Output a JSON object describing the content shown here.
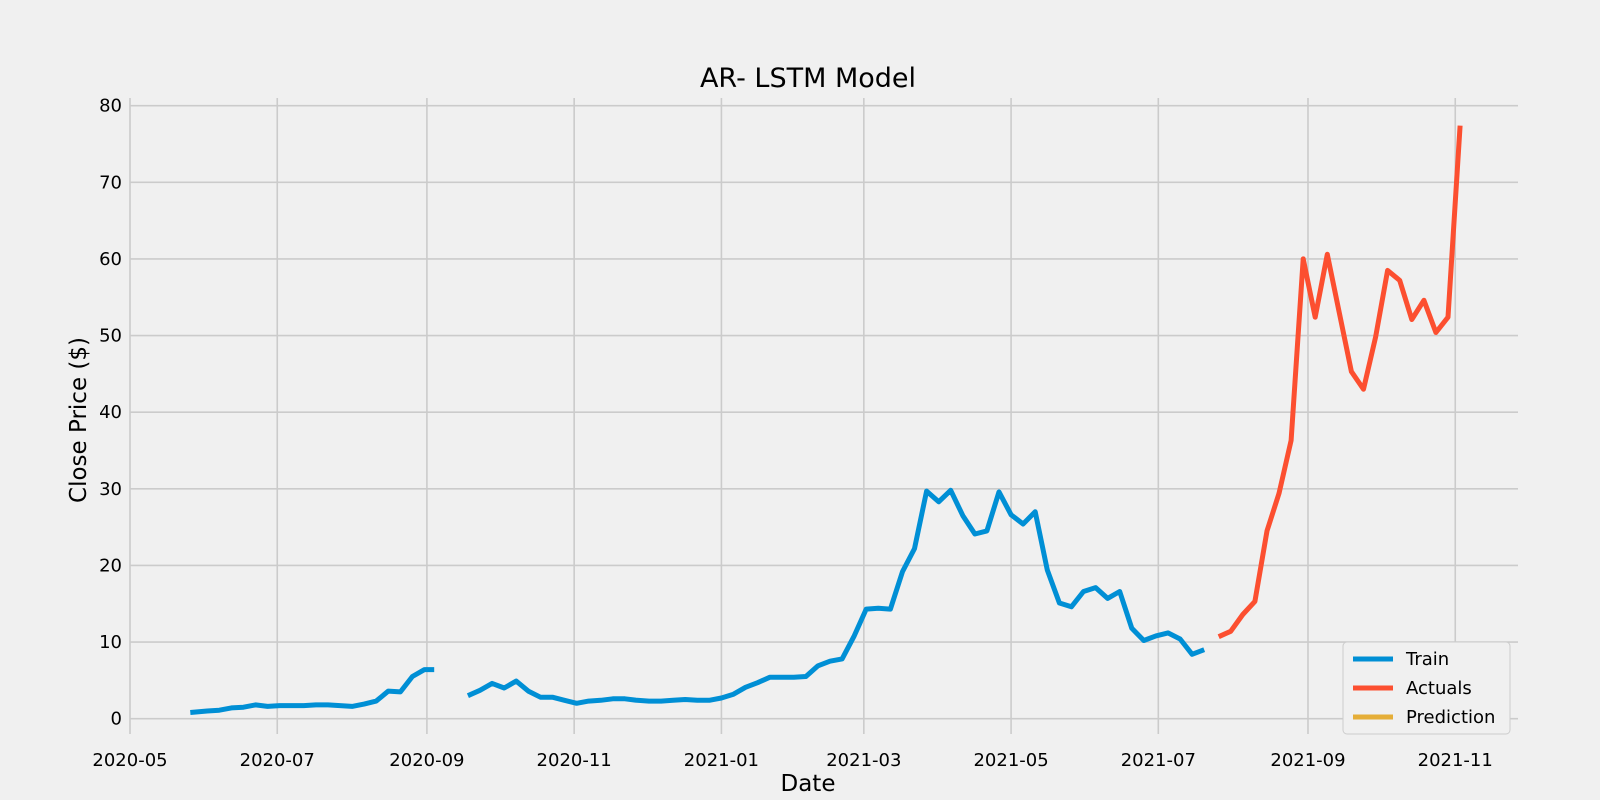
{
  "chart_data": {
    "type": "line",
    "title": "AR- LSTM Model",
    "xlabel": "Date",
    "ylabel": "Close Price ($)",
    "x_ticks": [
      "2020-05",
      "2020-07",
      "2020-09",
      "2020-11",
      "2021-01",
      "2021-03",
      "2021-05",
      "2021-07",
      "2021-09",
      "2021-11"
    ],
    "y_ticks": [
      0,
      10,
      20,
      30,
      40,
      50,
      60,
      70,
      80
    ],
    "xlim": [
      "2020-05-01",
      "2021-11-27"
    ],
    "ylim": [
      -2,
      81
    ],
    "grid": true,
    "legend_position": "bottom-right",
    "series": [
      {
        "name": "Train",
        "color": "#008fd5",
        "points": [
          [
            "2020-05-26",
            0.8
          ],
          [
            "2020-06-02",
            1.0
          ],
          [
            "2020-06-07",
            1.1
          ],
          [
            "2020-06-12",
            1.4
          ],
          [
            "2020-06-17",
            1.5
          ],
          [
            "2020-06-22",
            1.8
          ],
          [
            "2020-06-27",
            1.6
          ],
          [
            "2020-07-02",
            1.7
          ],
          [
            "2020-07-07",
            1.7
          ],
          [
            "2020-07-12",
            1.7
          ],
          [
            "2020-07-17",
            1.8
          ],
          [
            "2020-07-22",
            1.8
          ],
          [
            "2020-07-27",
            1.7
          ],
          [
            "2020-08-01",
            1.6
          ],
          [
            "2020-08-06",
            1.9
          ],
          [
            "2020-08-11",
            2.3
          ],
          [
            "2020-08-16",
            3.6
          ],
          [
            "2020-08-21",
            3.5
          ],
          [
            "2020-08-26",
            5.5
          ],
          [
            "2020-08-31",
            6.4
          ],
          [
            "2020-09-04",
            6.4
          ],
          null,
          [
            "2020-09-18",
            3.0
          ],
          [
            "2020-09-23",
            3.7
          ],
          [
            "2020-09-28",
            4.6
          ],
          [
            "2020-10-03",
            4.0
          ],
          [
            "2020-10-08",
            4.9
          ],
          [
            "2020-10-13",
            3.6
          ],
          [
            "2020-10-18",
            2.8
          ],
          [
            "2020-10-23",
            2.8
          ],
          [
            "2020-10-28",
            2.4
          ],
          [
            "2020-11-02",
            2.0
          ],
          [
            "2020-11-07",
            2.3
          ],
          [
            "2020-11-12",
            2.4
          ],
          [
            "2020-11-17",
            2.6
          ],
          [
            "2020-11-22",
            2.6
          ],
          [
            "2020-11-27",
            2.4
          ],
          [
            "2020-12-02",
            2.3
          ],
          [
            "2020-12-07",
            2.3
          ],
          [
            "2020-12-12",
            2.4
          ],
          [
            "2020-12-17",
            2.5
          ],
          [
            "2020-12-22",
            2.4
          ],
          [
            "2020-12-27",
            2.4
          ],
          [
            "2021-01-01",
            2.7
          ],
          [
            "2021-01-06",
            3.2
          ],
          [
            "2021-01-11",
            4.1
          ],
          [
            "2021-01-16",
            4.7
          ],
          [
            "2021-01-21",
            5.4
          ],
          [
            "2021-01-26",
            5.4
          ],
          [
            "2021-01-31",
            5.4
          ],
          [
            "2021-02-05",
            5.5
          ],
          [
            "2021-02-10",
            6.9
          ],
          [
            "2021-02-15",
            7.5
          ],
          [
            "2021-02-20",
            7.8
          ],
          [
            "2021-02-25",
            10.8
          ],
          [
            "2021-03-02",
            14.3
          ],
          [
            "2021-03-07",
            14.4
          ],
          [
            "2021-03-12",
            14.3
          ],
          [
            "2021-03-17",
            19.2
          ],
          [
            "2021-03-22",
            22.2
          ],
          [
            "2021-03-27",
            29.7
          ],
          [
            "2021-04-01",
            28.3
          ],
          [
            "2021-04-06",
            29.8
          ],
          [
            "2021-04-11",
            26.5
          ],
          [
            "2021-04-16",
            24.1
          ],
          [
            "2021-04-21",
            24.5
          ],
          [
            "2021-04-26",
            29.6
          ],
          [
            "2021-05-01",
            26.6
          ],
          [
            "2021-05-06",
            25.4
          ],
          [
            "2021-05-11",
            27.0
          ],
          [
            "2021-05-16",
            19.4
          ],
          [
            "2021-05-21",
            15.1
          ],
          [
            "2021-05-26",
            14.6
          ],
          [
            "2021-05-31",
            16.6
          ],
          [
            "2021-06-05",
            17.1
          ],
          [
            "2021-06-10",
            15.7
          ],
          [
            "2021-06-15",
            16.6
          ],
          [
            "2021-06-20",
            11.8
          ],
          [
            "2021-06-25",
            10.2
          ],
          [
            "2021-06-30",
            10.8
          ],
          [
            "2021-07-05",
            11.2
          ],
          [
            "2021-07-10",
            10.4
          ],
          [
            "2021-07-15",
            8.4
          ],
          [
            "2021-07-20",
            9.0
          ]
        ]
      },
      {
        "name": "Actuals",
        "color": "#fc4f30",
        "points": [
          [
            "2021-07-26",
            10.7
          ],
          [
            "2021-07-31",
            11.4
          ],
          [
            "2021-08-05",
            13.6
          ],
          [
            "2021-08-10",
            15.3
          ],
          [
            "2021-08-15",
            24.5
          ],
          [
            "2021-08-20",
            29.4
          ],
          [
            "2021-08-25",
            36.3
          ],
          [
            "2021-08-30",
            60.0
          ],
          [
            "2021-09-04",
            52.4
          ],
          [
            "2021-09-09",
            60.6
          ],
          [
            "2021-09-14",
            52.9
          ],
          [
            "2021-09-19",
            45.3
          ],
          [
            "2021-09-24",
            43.0
          ],
          [
            "2021-09-29",
            49.8
          ],
          [
            "2021-10-04",
            58.5
          ],
          [
            "2021-10-09",
            57.2
          ],
          [
            "2021-10-14",
            52.1
          ],
          [
            "2021-10-19",
            54.6
          ],
          [
            "2021-10-24",
            50.4
          ],
          [
            "2021-10-29",
            52.4
          ],
          [
            "2021-11-03",
            77.4
          ]
        ]
      },
      {
        "name": "Prediction",
        "color": "#e5ae38",
        "points": []
      }
    ]
  }
}
